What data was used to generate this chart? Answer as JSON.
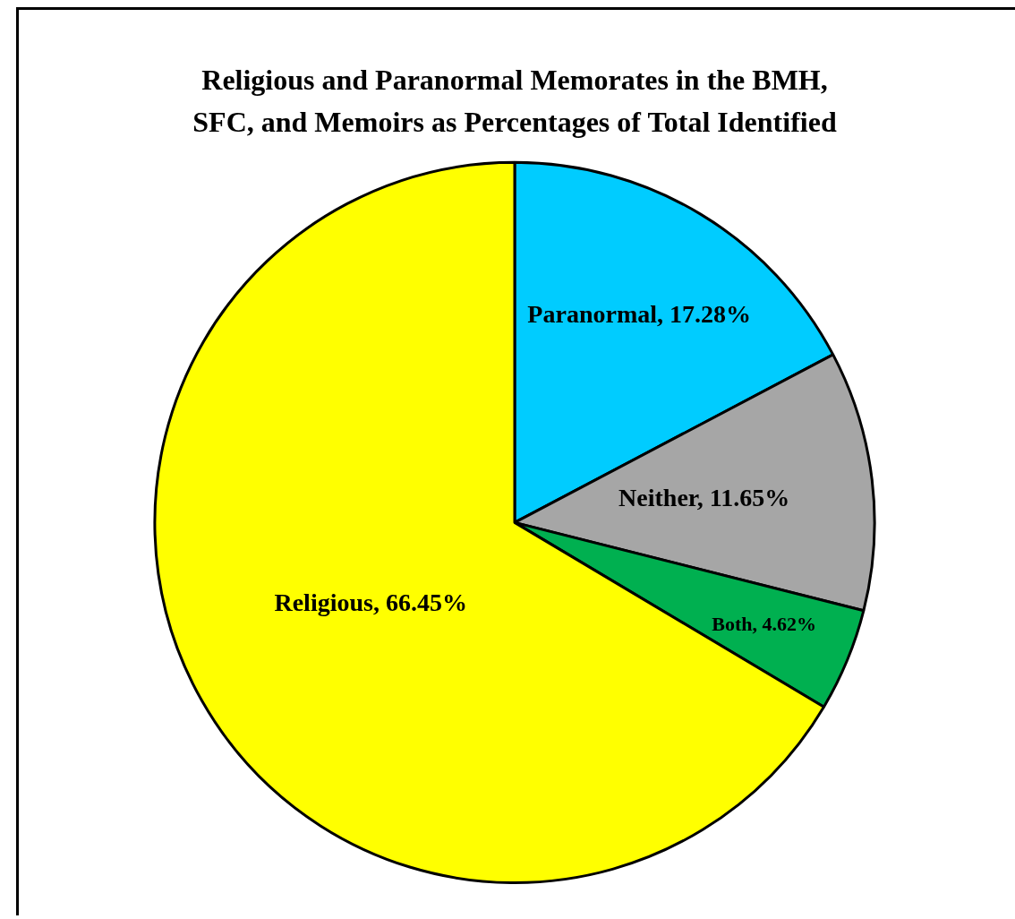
{
  "chart_data": {
    "type": "pie",
    "title": "Religious and Paranormal Memorates in the BMH,\nSFC, and Memoirs as Percentages of Total Identified",
    "categories": [
      "Paranormal",
      "Neither",
      "Both",
      "Religious"
    ],
    "values": [
      17.28,
      11.65,
      4.62,
      66.45
    ],
    "colors": [
      "#00ccff",
      "#a6a6a6",
      "#00b050",
      "#ffff00"
    ],
    "value_labels": [
      "17.28%",
      "11.65%",
      "4.62%",
      "66.45%"
    ],
    "legend": false
  }
}
